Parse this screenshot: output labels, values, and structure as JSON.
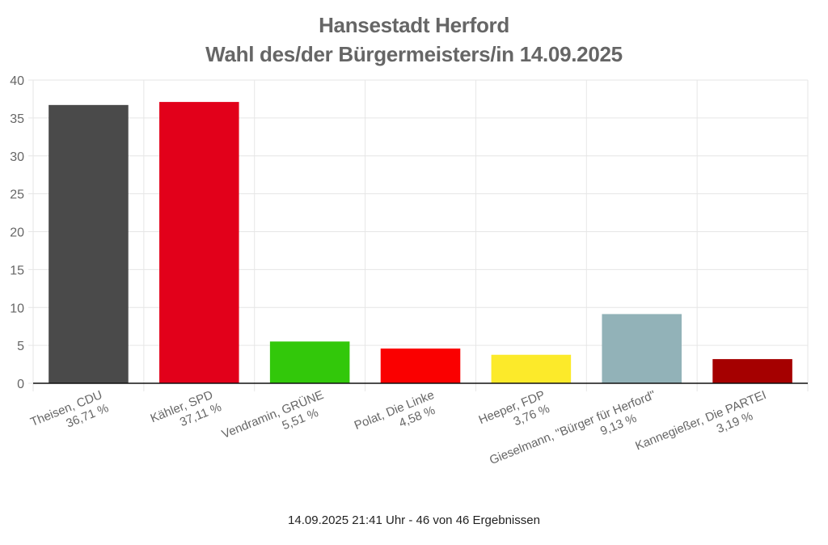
{
  "chart_data": {
    "type": "bar",
    "title": "Hansestadt Herford",
    "subtitle": "Wahl des/der Bürgermeisters/in 14.09.2025",
    "xlabel": "",
    "ylabel": "",
    "ylim": [
      0,
      40
    ],
    "yticks": [
      0,
      5,
      10,
      15,
      20,
      25,
      30,
      35,
      40
    ],
    "grid": true,
    "legend": "none",
    "categories": [
      "Theisen, CDU",
      "Kähler, SPD",
      "Vendramin, GRÜNE",
      "Polat, Die Linke",
      "Heeper, FDP",
      "Gieselmann, \"Bürger für Herford\"",
      "Kannegießer, Die PARTEI"
    ],
    "value_labels": [
      "36,71 %",
      "37,11 %",
      "5,51 %",
      "4,58 %",
      "3,76 %",
      "9,13 %",
      "3,19 %"
    ],
    "values": [
      36.71,
      37.11,
      5.51,
      4.58,
      3.76,
      9.13,
      3.19
    ],
    "colors": [
      "#4a4a4a",
      "#e2001a",
      "#32c80a",
      "#fa0000",
      "#fcea2a",
      "#92b2b8",
      "#a50000"
    ]
  },
  "header": {
    "title": "Hansestadt Herford",
    "subtitle": "Wahl des/der Bürgermeisters/in 14.09.2025"
  },
  "footer": {
    "status": "14.09.2025 21:41 Uhr - 46 von 46 Ergebnissen"
  },
  "style": {
    "grid_color": "#e6e6e6",
    "axis_color": "#111111",
    "tick_label_color": "#666666"
  }
}
